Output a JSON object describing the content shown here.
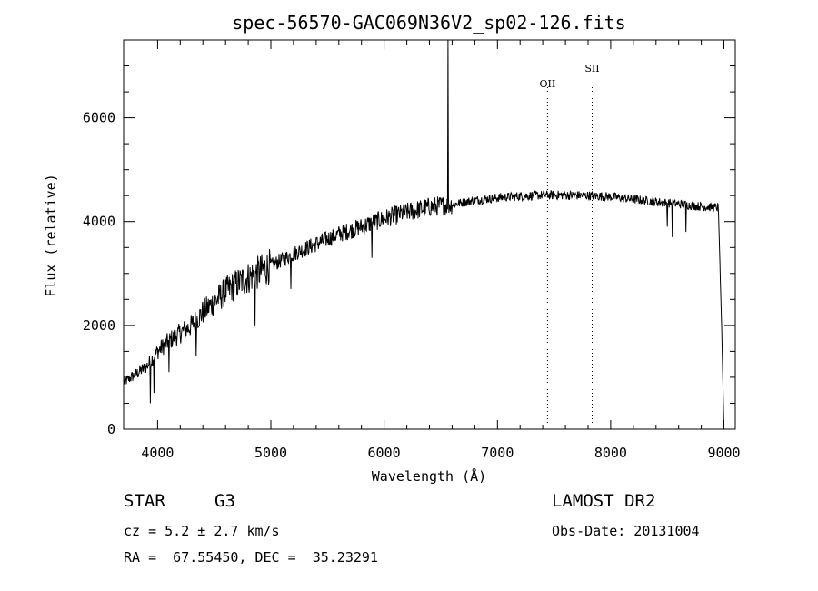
{
  "chart_data": {
    "type": "line",
    "title": "spec-56570-GAC069N36V2_sp02-126.fits",
    "xlabel": "Wavelength (Å)",
    "ylabel": "Flux (relative)",
    "xlim": [
      3700,
      9100
    ],
    "ylim": [
      0,
      7500
    ],
    "x_ticks": [
      4000,
      5000,
      6000,
      7000,
      8000,
      9000
    ],
    "y_ticks": [
      0,
      2000,
      4000,
      6000
    ],
    "continuum": [
      [
        3700,
        900
      ],
      [
        3800,
        1050
      ],
      [
        3900,
        1200
      ],
      [
        4000,
        1500
      ],
      [
        4100,
        1700
      ],
      [
        4200,
        1850
      ],
      [
        4300,
        2000
      ],
      [
        4400,
        2250
      ],
      [
        4500,
        2450
      ],
      [
        4600,
        2650
      ],
      [
        4700,
        2800
      ],
      [
        4800,
        2920
      ],
      [
        4900,
        3030
      ],
      [
        5000,
        3150
      ],
      [
        5200,
        3380
      ],
      [
        5400,
        3570
      ],
      [
        5600,
        3760
      ],
      [
        5800,
        3900
      ],
      [
        6000,
        4060
      ],
      [
        6200,
        4180
      ],
      [
        6400,
        4280
      ],
      [
        6600,
        4330
      ],
      [
        6800,
        4410
      ],
      [
        7000,
        4460
      ],
      [
        7200,
        4490
      ],
      [
        7400,
        4510
      ],
      [
        7600,
        4510
      ],
      [
        7800,
        4500
      ],
      [
        8000,
        4480
      ],
      [
        8200,
        4430
      ],
      [
        8400,
        4380
      ],
      [
        8600,
        4340
      ],
      [
        8800,
        4290
      ],
      [
        8950,
        4270
      ],
      [
        8980,
        2000
      ],
      [
        9000,
        0
      ]
    ],
    "absorption_lines": [
      {
        "x": 3934,
        "y": 500
      },
      {
        "x": 3969,
        "y": 700
      },
      {
        "x": 4101,
        "y": 1100
      },
      {
        "x": 4340,
        "y": 1400
      },
      {
        "x": 4861,
        "y": 2000
      },
      {
        "x": 5175,
        "y": 2700
      },
      {
        "x": 5893,
        "y": 3300
      },
      {
        "x": 8498,
        "y": 3900
      },
      {
        "x": 8542,
        "y": 3700
      },
      {
        "x": 8662,
        "y": 3800
      }
    ],
    "emission_lines": [
      {
        "x": 6563,
        "y": 7500
      }
    ],
    "marker_lines": [
      {
        "label": "OII",
        "x": 7442
      },
      {
        "label": "SII",
        "x": 7836
      }
    ]
  },
  "info": {
    "class": "STAR",
    "subclass": "G3",
    "survey": "LAMOST DR2",
    "cz": "cz = 5.2 ± 2.7 km/s",
    "obs_date": "Obs-Date: 20131004",
    "coords": "RA =  67.55450, DEC =  35.23291"
  }
}
